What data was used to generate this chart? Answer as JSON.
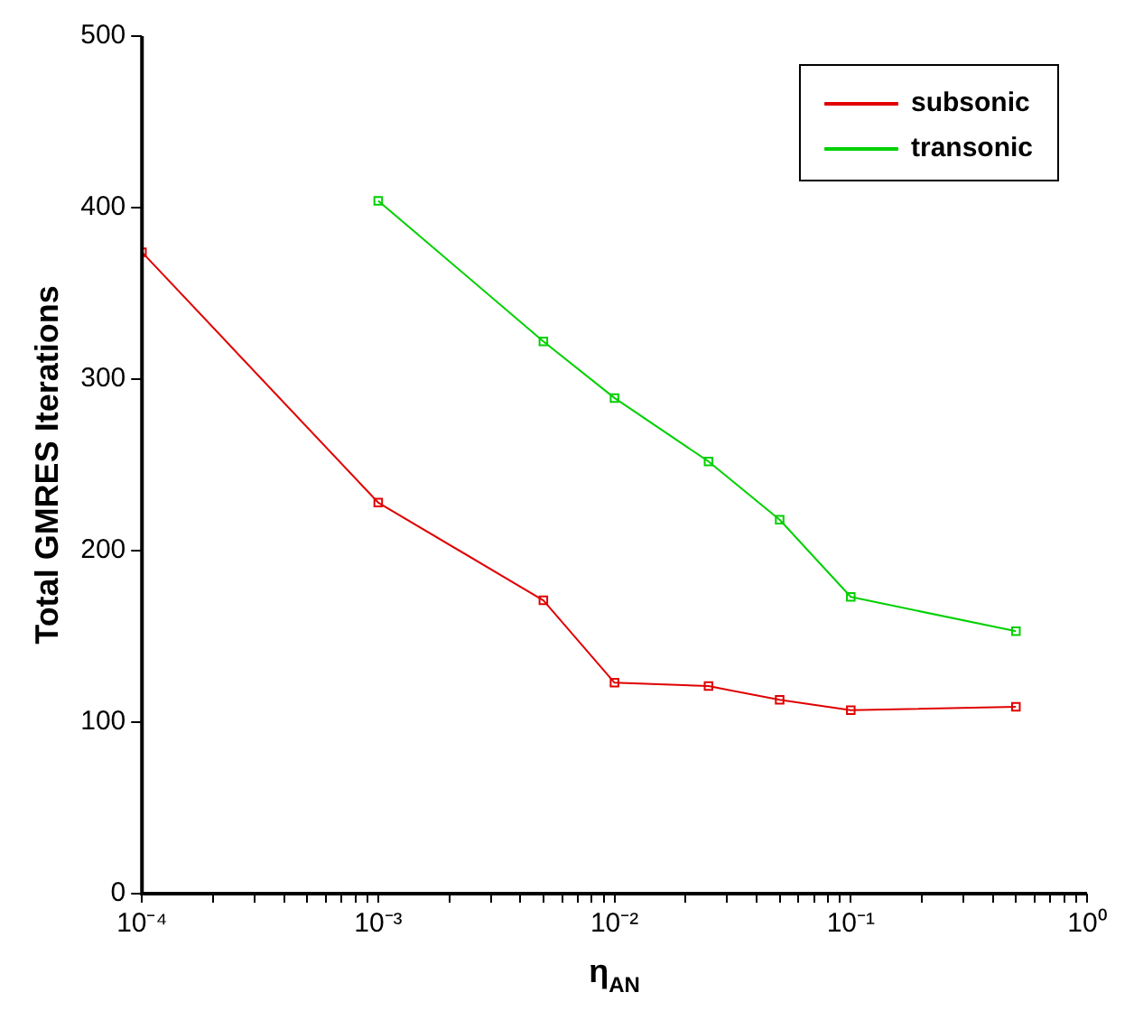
{
  "chart_data": {
    "type": "line",
    "xlabel": "η$_{AN}$",
    "ylabel": "Total GMRES Iterations",
    "log": "x",
    "grid": false,
    "legend": "top right",
    "marker": "square",
    "line_style": "solid",
    "xlim": [
      0.0001,
      1
    ],
    "ylim": [
      0,
      500
    ],
    "yticks": [
      0,
      100,
      200,
      300,
      400,
      500
    ],
    "xticks": [
      {
        "value": 0.0001,
        "label": "10⁻⁴"
      },
      {
        "value": 0.0002,
        "label": null
      },
      {
        "value": 0.0003,
        "label": null
      },
      {
        "value": 0.0004,
        "label": null
      },
      {
        "value": 0.0005,
        "label": null
      },
      {
        "value": 0.0006,
        "label": null
      },
      {
        "value": 0.0007,
        "label": null
      },
      {
        "value": 0.0008,
        "label": null
      },
      {
        "value": 0.0009,
        "label": null
      },
      {
        "value": 0.001,
        "label": "10⁻³"
      },
      {
        "value": 0.002,
        "label": null
      },
      {
        "value": 0.003,
        "label": null
      },
      {
        "value": 0.004,
        "label": null
      },
      {
        "value": 0.005,
        "label": null
      },
      {
        "value": 0.006,
        "label": null
      },
      {
        "value": 0.007,
        "label": null
      },
      {
        "value": 0.008,
        "label": null
      },
      {
        "value": 0.009,
        "label": null
      },
      {
        "value": 0.01,
        "label": "10⁻²"
      },
      {
        "value": 0.02,
        "label": null
      },
      {
        "value": 0.03,
        "label": null
      },
      {
        "value": 0.04,
        "label": null
      },
      {
        "value": 0.05,
        "label": null
      },
      {
        "value": 0.06,
        "label": null
      },
      {
        "value": 0.07,
        "label": null
      },
      {
        "value": 0.08,
        "label": null
      },
      {
        "value": 0.09,
        "label": null
      },
      {
        "value": 0.1,
        "label": "10⁻¹"
      },
      {
        "value": 0.2,
        "label": null
      },
      {
        "value": 0.3,
        "label": null
      },
      {
        "value": 0.4,
        "label": null
      },
      {
        "value": 0.5,
        "label": null
      },
      {
        "value": 0.6,
        "label": null
      },
      {
        "value": 0.7,
        "label": null
      },
      {
        "value": 0.8,
        "label": null
      },
      {
        "value": 0.9,
        "label": null
      },
      {
        "value": 1,
        "label": "10⁰"
      }
    ],
    "series": [
      {
        "name": "subsonic",
        "color": "#e00000",
        "x": [
          0.0001,
          0.001,
          0.005,
          0.01,
          0.025,
          0.05,
          0.1,
          0.5
        ],
        "values": [
          374,
          228,
          171,
          123,
          121,
          113,
          107,
          109
        ]
      },
      {
        "name": "transonic",
        "color": "#00d000",
        "x": [
          0.001,
          0.005,
          0.01,
          0.025,
          0.05,
          0.1,
          0.5
        ],
        "values": [
          404,
          322,
          289,
          252,
          218,
          173,
          153
        ]
      }
    ]
  }
}
